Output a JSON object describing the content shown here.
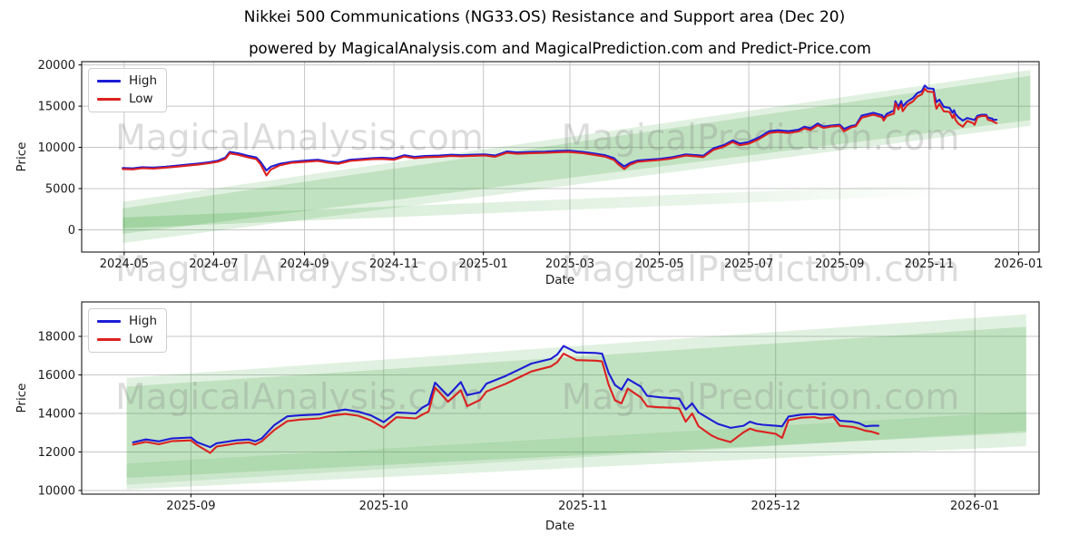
{
  "header": {
    "title": "Nikkei 500 Communications (NG33.OS) Resistance and Support area (Dec 20)",
    "subtitle": "powered by MagicalAnalysis.com and MagicalPrediction.com and Predict-Price.com"
  },
  "watermarks": {
    "left": "MagicalAnalysis.com",
    "right": "MagicalPrediction.com"
  },
  "chart_data": [
    {
      "type": "line",
      "ylabel": "Price",
      "xlabel": "Date",
      "x_range": [
        "2024-04-02",
        "2026-01-15"
      ],
      "y_range": [
        -2700,
        20400
      ],
      "grid": true,
      "legend_position": "upper-left",
      "x_ticks": [
        {
          "date": "2024-05-01",
          "label": "2024-05"
        },
        {
          "date": "2024-07-01",
          "label": "2024-07"
        },
        {
          "date": "2024-09-01",
          "label": "2024-09"
        },
        {
          "date": "2024-11-01",
          "label": "2024-11"
        },
        {
          "date": "2025-01-01",
          "label": "2025-01"
        },
        {
          "date": "2025-03-01",
          "label": "2025-03"
        },
        {
          "date": "2025-05-01",
          "label": "2025-05"
        },
        {
          "date": "2025-07-01",
          "label": "2025-07"
        },
        {
          "date": "2025-09-01",
          "label": "2025-09"
        },
        {
          "date": "2025-11-01",
          "label": "2025-11"
        },
        {
          "date": "2026-01-01",
          "label": "2026-01"
        }
      ],
      "y_ticks": [
        0,
        5000,
        10000,
        15000,
        20000
      ],
      "legend": [
        {
          "label": "High",
          "color": "#1c1cd6"
        },
        {
          "label": "Low",
          "color": "#dc2020"
        }
      ],
      "band_color": "#33a033",
      "bands": [
        {
          "x": [
            "2024-04-30",
            "2026-01-09"
          ],
          "top": [
            3400,
            19400
          ],
          "bottom": [
            -1600,
            12600
          ],
          "opacity": 0.15
        },
        {
          "x": [
            "2024-04-30",
            "2026-01-09"
          ],
          "top": [
            2600,
            18700
          ],
          "bottom": [
            -500,
            13300
          ],
          "opacity": 0.18
        },
        {
          "x": [
            "2024-04-30",
            "2025-11-15"
          ],
          "top": [
            1500,
            5600
          ],
          "bottom": [
            200,
            4300
          ],
          "opacity": 0.22,
          "fade": true
        }
      ],
      "series": {
        "dates": [
          "2024-04-30",
          "2024-05-07",
          "2024-05-13",
          "2024-05-21",
          "2024-05-29",
          "2024-06-06",
          "2024-06-13",
          "2024-06-21",
          "2024-06-28",
          "2024-07-04",
          "2024-07-09",
          "2024-07-12",
          "2024-07-18",
          "2024-07-24",
          "2024-07-30",
          "2024-08-02",
          "2024-08-06",
          "2024-08-09",
          "2024-08-15",
          "2024-08-23",
          "2024-09-02",
          "2024-09-10",
          "2024-09-17",
          "2024-09-24",
          "2024-10-02",
          "2024-10-10",
          "2024-10-17",
          "2024-10-24",
          "2024-11-01",
          "2024-11-08",
          "2024-11-15",
          "2024-11-22",
          "2024-12-02",
          "2024-12-10",
          "2024-12-17",
          "2024-12-24",
          "2025-01-02",
          "2025-01-09",
          "2025-01-17",
          "2025-01-24",
          "2025-02-03",
          "2025-02-12",
          "2025-02-20",
          "2025-02-28",
          "2025-03-10",
          "2025-03-18",
          "2025-03-25",
          "2025-03-31",
          "2025-04-03",
          "2025-04-07",
          "2025-04-11",
          "2025-04-16",
          "2025-04-23",
          "2025-05-01",
          "2025-05-09",
          "2025-05-19",
          "2025-05-27",
          "2025-05-31",
          "2025-06-07",
          "2025-06-14",
          "2025-06-20",
          "2025-06-25",
          "2025-07-01",
          "2025-07-08",
          "2025-07-15",
          "2025-07-21",
          "2025-07-28",
          "2025-08-04",
          "2025-08-08",
          "2025-08-12",
          "2025-08-17",
          "2025-08-21",
          "2025-08-26",
          "2025-09-01",
          "2025-09-04",
          "2025-09-09",
          "2025-09-12",
          "2025-09-16",
          "2025-09-24",
          "2025-09-30",
          "2025-10-01",
          "2025-10-03",
          "2025-10-08",
          "2025-10-09",
          "2025-10-11",
          "2025-10-13",
          "2025-10-14",
          "2025-10-17",
          "2025-10-21",
          "2025-10-24",
          "2025-10-27",
          "2025-10-29",
          "2025-10-31",
          "2025-11-04",
          "2025-11-05",
          "2025-11-06",
          "2025-11-08",
          "2025-11-11",
          "2025-11-15",
          "2025-11-17",
          "2025-11-18",
          "2025-11-19",
          "2025-11-21",
          "2025-11-24",
          "2025-11-27",
          "2025-12-01",
          "2025-12-02",
          "2025-12-04",
          "2025-12-07",
          "2025-12-10",
          "2025-12-11",
          "2025-12-14",
          "2025-12-15",
          "2025-12-17"
        ],
        "high": [
          7500,
          7450,
          7600,
          7550,
          7650,
          7780,
          7900,
          8050,
          8200,
          8400,
          8750,
          9450,
          9280,
          9000,
          8780,
          8250,
          7200,
          7650,
          8000,
          8250,
          8400,
          8500,
          8300,
          8150,
          8500,
          8600,
          8700,
          8750,
          8650,
          9050,
          8850,
          8950,
          9000,
          9100,
          9050,
          9100,
          9150,
          9000,
          9500,
          9380,
          9450,
          9480,
          9550,
          9600,
          9450,
          9250,
          9050,
          8700,
          8200,
          7700,
          8100,
          8400,
          8500,
          8600,
          8780,
          9150,
          9050,
          8980,
          9900,
          10280,
          10840,
          10470,
          10650,
          11210,
          11960,
          12070,
          11960,
          12140,
          12510,
          12320,
          12900,
          12510,
          12650,
          12750,
          12250,
          12600,
          12700,
          13850,
          14200,
          13900,
          13550,
          14050,
          14480,
          15600,
          14920,
          15630,
          14950,
          15550,
          16000,
          16590,
          16830,
          17500,
          17170,
          17100,
          16110,
          15480,
          15790,
          14920,
          14790,
          14200,
          14520,
          14050,
          13650,
          13250,
          13570,
          13360,
          13330,
          13840,
          13970,
          13940,
          13620,
          13490,
          13330,
          13360
        ],
        "low": [
          7380,
          7330,
          7480,
          7430,
          7540,
          7660,
          7780,
          7930,
          8080,
          8270,
          8600,
          9270,
          9090,
          8810,
          8570,
          7950,
          6600,
          7300,
          7820,
          8120,
          8260,
          8350,
          8140,
          8000,
          8360,
          8460,
          8560,
          8600,
          8500,
          8890,
          8690,
          8810,
          8860,
          8960,
          8910,
          8970,
          9010,
          8860,
          9340,
          9220,
          9300,
          9330,
          9400,
          9440,
          9290,
          9080,
          8870,
          8480,
          7950,
          7380,
          7890,
          8240,
          8360,
          8460,
          8640,
          9000,
          8890,
          8820,
          9710,
          10090,
          10640,
          10260,
          10450,
          11010,
          11750,
          11860,
          11740,
          11930,
          12300,
          12100,
          12680,
          12360,
          12520,
          12600,
          11950,
          12450,
          12550,
          13600,
          13970,
          13640,
          13250,
          13800,
          14100,
          15350,
          14600,
          15200,
          14380,
          15140,
          15590,
          16180,
          16440,
          17100,
          16770,
          16700,
          15500,
          14680,
          15290,
          14370,
          14300,
          13570,
          14000,
          13330,
          12860,
          12510,
          13210,
          12940,
          12730,
          13650,
          13810,
          13810,
          13360,
          13210,
          13100,
          12940
        ]
      }
    },
    {
      "type": "line",
      "ylabel": "Price",
      "xlabel": "Date",
      "x_range": [
        "2025-08-15",
        "2026-01-11"
      ],
      "y_range": [
        9810,
        19790
      ],
      "grid": true,
      "legend_position": "upper-left",
      "x_ticks": [
        {
          "date": "2025-09-01",
          "label": "2025-09"
        },
        {
          "date": "2025-10-01",
          "label": "2025-10"
        },
        {
          "date": "2025-11-01",
          "label": "2025-11"
        },
        {
          "date": "2025-12-01",
          "label": "2025-12"
        },
        {
          "date": "2026-01-01",
          "label": "2026-01"
        }
      ],
      "y_ticks": [
        10000,
        12000,
        14000,
        16000,
        18000
      ],
      "legend": [
        {
          "label": "High",
          "color": "#1c1cd6"
        },
        {
          "label": "Low",
          "color": "#dc2020"
        }
      ],
      "band_color": "#33a033",
      "bands": [
        {
          "x": [
            "2025-08-22",
            "2026-01-09"
          ],
          "top": [
            15850,
            19150
          ],
          "bottom": [
            10050,
            12300
          ],
          "opacity": 0.15
        },
        {
          "x": [
            "2025-08-22",
            "2026-01-09"
          ],
          "top": [
            15400,
            18500
          ],
          "bottom": [
            10650,
            13000
          ],
          "opacity": 0.18
        },
        {
          "x": [
            "2025-08-22",
            "2026-01-09"
          ],
          "top": [
            11400,
            14100
          ],
          "bottom": [
            10300,
            13100
          ],
          "opacity": 0.13
        }
      ],
      "series": {
        "dates": [
          "2025-08-23",
          "2025-08-25",
          "2025-08-27",
          "2025-08-29",
          "2025-09-01",
          "2025-09-02",
          "2025-09-04",
          "2025-09-05",
          "2025-09-08",
          "2025-09-10",
          "2025-09-11",
          "2025-09-12",
          "2025-09-14",
          "2025-09-16",
          "2025-09-18",
          "2025-09-21",
          "2025-09-23",
          "2025-09-25",
          "2025-09-27",
          "2025-09-29",
          "2025-10-01",
          "2025-10-03",
          "2025-10-06",
          "2025-10-07",
          "2025-10-08",
          "2025-10-09",
          "2025-10-11",
          "2025-10-13",
          "2025-10-14",
          "2025-10-16",
          "2025-10-17",
          "2025-10-20",
          "2025-10-22",
          "2025-10-24",
          "2025-10-27",
          "2025-10-28",
          "2025-10-29",
          "2025-10-31",
          "2025-11-03",
          "2025-11-04",
          "2025-11-05",
          "2025-11-06",
          "2025-11-07",
          "2025-11-08",
          "2025-11-10",
          "2025-11-11",
          "2025-11-13",
          "2025-11-15",
          "2025-11-16",
          "2025-11-17",
          "2025-11-18",
          "2025-11-19",
          "2025-11-21",
          "2025-11-22",
          "2025-11-24",
          "2025-11-26",
          "2025-11-27",
          "2025-11-28",
          "2025-11-29",
          "2025-12-01",
          "2025-12-02",
          "2025-12-03",
          "2025-12-05",
          "2025-12-07",
          "2025-12-08",
          "2025-12-10",
          "2025-12-11",
          "2025-12-13",
          "2025-12-14",
          "2025-12-15",
          "2025-12-16",
          "2025-12-17"
        ],
        "high": [
          12500,
          12650,
          12550,
          12700,
          12750,
          12500,
          12250,
          12450,
          12600,
          12650,
          12550,
          12700,
          13400,
          13850,
          13900,
          13950,
          14100,
          14200,
          14100,
          13900,
          13550,
          14050,
          14000,
          14300,
          14480,
          15600,
          14920,
          15630,
          14950,
          15100,
          15550,
          15950,
          16270,
          16590,
          16830,
          17060,
          17500,
          17170,
          17140,
          17100,
          16110,
          15480,
          15240,
          15790,
          15400,
          14920,
          14840,
          14790,
          14760,
          14200,
          14520,
          14050,
          13650,
          13460,
          13250,
          13360,
          13570,
          13460,
          13410,
          13360,
          13330,
          13840,
          13940,
          13970,
          13940,
          13940,
          13620,
          13570,
          13490,
          13330,
          13360,
          13360
        ],
        "low": [
          12380,
          12520,
          12400,
          12560,
          12600,
          12350,
          11950,
          12280,
          12440,
          12500,
          12380,
          12550,
          13150,
          13600,
          13680,
          13740,
          13890,
          13970,
          13880,
          13640,
          13250,
          13800,
          13740,
          13940,
          14100,
          15350,
          14600,
          15200,
          14380,
          14700,
          15140,
          15540,
          15860,
          16180,
          16440,
          16660,
          17100,
          16770,
          16740,
          16700,
          15500,
          14680,
          14520,
          15290,
          14840,
          14365,
          14320,
          14290,
          14250,
          13570,
          14000,
          13330,
          12860,
          12700,
          12510,
          13020,
          13210,
          13100,
          13050,
          12940,
          12730,
          13650,
          13780,
          13810,
          13730,
          13810,
          13360,
          13300,
          13210,
          13100,
          13050,
          12940
        ]
      }
    }
  ]
}
